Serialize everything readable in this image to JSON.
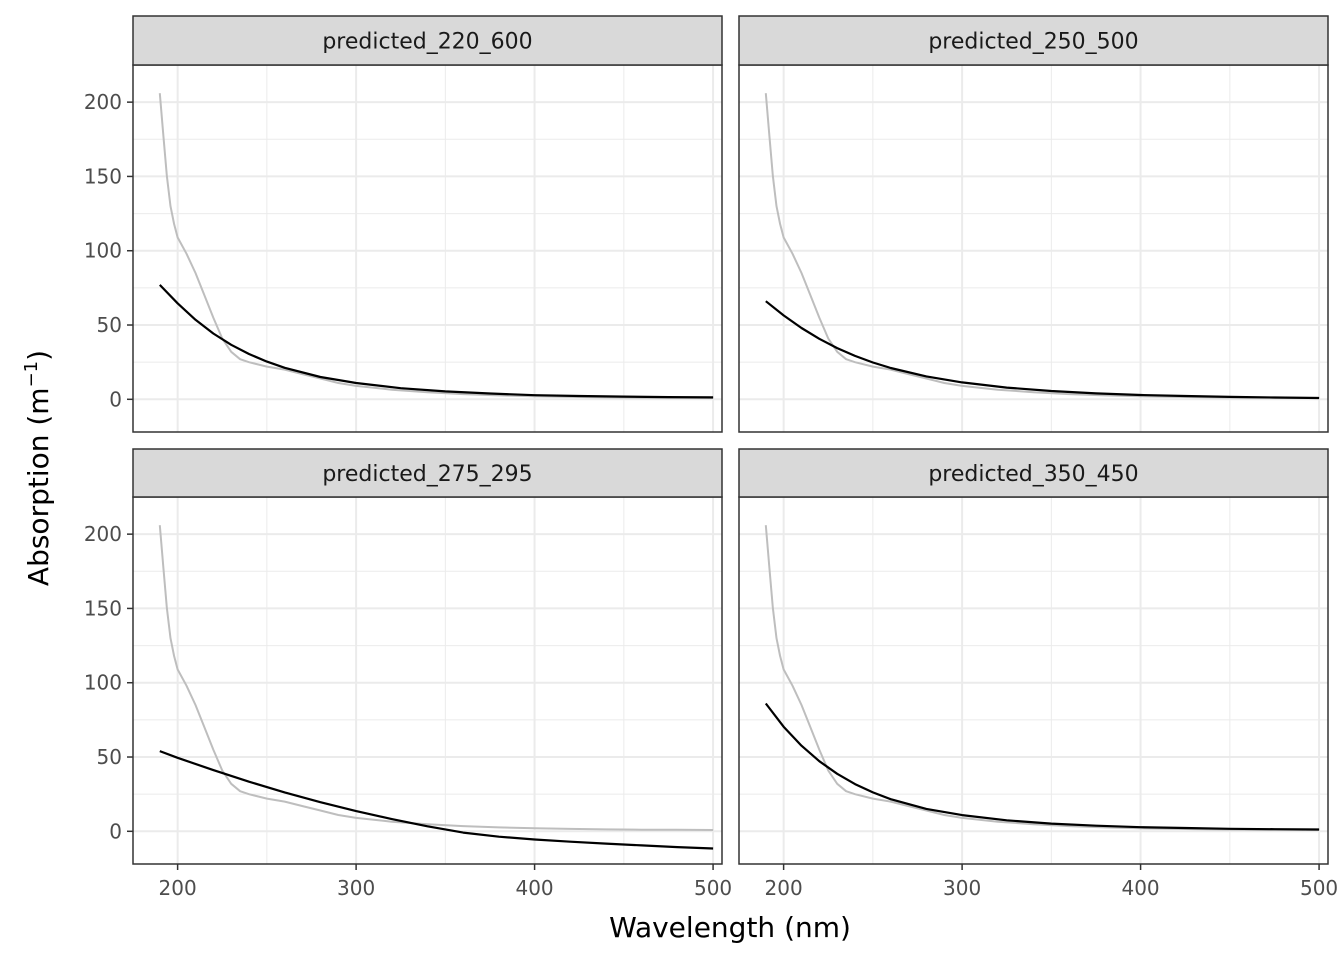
{
  "chart_data": {
    "type": "line",
    "layout": "facet-grid-2x2",
    "xlabel": "Wavelength (nm)",
    "ylabel": "Absorption (m",
    "ylabel_superscript": "−1",
    "ylabel_close": ")",
    "xlim": [
      175,
      505
    ],
    "ylim": [
      -22,
      225
    ],
    "xticks": [
      200,
      300,
      400,
      500
    ],
    "yticks": [
      0,
      50,
      100,
      150,
      200
    ],
    "grid": true,
    "colors": {
      "observed": "#bebebe",
      "predicted": "#000000",
      "strip_fill": "#d9d9d9",
      "panel_border": "#333333",
      "grid": "#ebebeb"
    },
    "observed": {
      "x": [
        190,
        192,
        194,
        196,
        198,
        200,
        205,
        210,
        215,
        220,
        225,
        230,
        235,
        240,
        250,
        260,
        270,
        280,
        290,
        300,
        320,
        340,
        360,
        380,
        400,
        420,
        440,
        460,
        480,
        500
      ],
      "y": [
        206,
        178,
        150,
        130,
        118,
        109,
        98,
        85,
        70,
        55,
        41,
        32,
        27,
        25,
        22,
        20,
        17,
        14,
        11,
        9,
        6.5,
        4.8,
        3.5,
        2.6,
        2.0,
        1.6,
        1.3,
        1.1,
        1.0,
        0.9
      ]
    },
    "panels": [
      {
        "title": "predicted_220_600",
        "x": [
          190,
          200,
          210,
          220,
          230,
          240,
          250,
          260,
          280,
          300,
          325,
          350,
          375,
          400,
          425,
          450,
          475,
          500
        ],
        "y": [
          77,
          64.6,
          53.5,
          44.3,
          36.7,
          30.5,
          25.4,
          21.2,
          15.0,
          11.0,
          7.5,
          5.3,
          3.9,
          2.8,
          2.2,
          1.8,
          1.5,
          1.3
        ]
      },
      {
        "title": "predicted_250_500",
        "x": [
          190,
          200,
          210,
          220,
          230,
          240,
          250,
          260,
          280,
          300,
          325,
          350,
          375,
          400,
          425,
          450,
          475,
          500
        ],
        "y": [
          66,
          56.5,
          48.0,
          40.7,
          34.5,
          29.2,
          24.8,
          21.1,
          15.4,
          11.4,
          7.9,
          5.6,
          4.0,
          2.9,
          2.2,
          1.6,
          1.2,
          0.9
        ]
      },
      {
        "title": "predicted_275_295",
        "x": [
          190,
          200,
          220,
          240,
          260,
          280,
          300,
          320,
          340,
          360,
          380,
          400,
          420,
          440,
          460,
          480,
          500
        ],
        "y": [
          54,
          49.5,
          41.2,
          33.4,
          26.2,
          19.6,
          13.6,
          8.2,
          3.4,
          -0.9,
          -3.6,
          -5.5,
          -7.0,
          -8.3,
          -9.5,
          -10.6,
          -11.6
        ]
      },
      {
        "title": "predicted_350_450",
        "x": [
          190,
          200,
          210,
          220,
          230,
          240,
          250,
          260,
          280,
          300,
          325,
          350,
          375,
          400,
          425,
          450,
          475,
          500
        ],
        "y": [
          86,
          70.4,
          57.6,
          47.2,
          38.7,
          31.8,
          26.2,
          21.6,
          15.1,
          10.9,
          7.4,
          5.2,
          3.8,
          2.8,
          2.2,
          1.7,
          1.4,
          1.2
        ]
      }
    ]
  }
}
